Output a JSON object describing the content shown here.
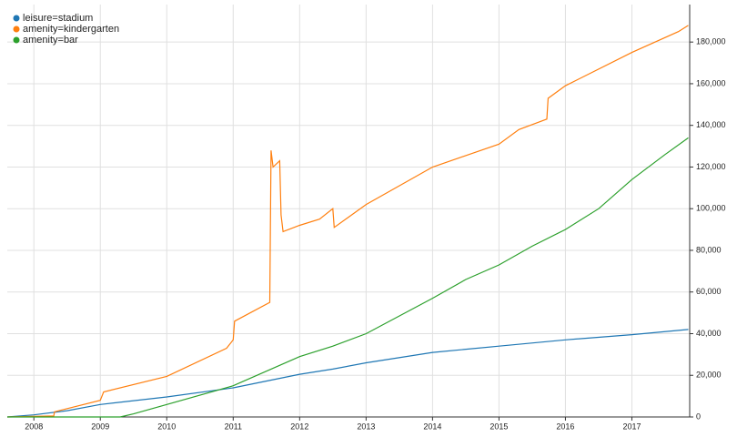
{
  "chart_data": {
    "type": "line",
    "series": [
      {
        "name": "leisure=stadium",
        "color": "#1f77b4",
        "x": [
          2007.6,
          2008,
          2008.5,
          2009,
          2010,
          2011,
          2012,
          2012.5,
          2013,
          2014,
          2015,
          2016,
          2017,
          2017.85
        ],
        "values": [
          0,
          1000,
          3000,
          6000,
          9600,
          14000,
          20500,
          23000,
          26000,
          31000,
          34000,
          37000,
          39500,
          42000
        ]
      },
      {
        "name": "amenity=kindergarten",
        "color": "#ff7f0e",
        "x": [
          2007.6,
          2008.3,
          2008.31,
          2009,
          2009.05,
          2010,
          2010.9,
          2011,
          2011.02,
          2011.55,
          2011.57,
          2011.6,
          2011.7,
          2011.72,
          2011.75,
          2012,
          2012.3,
          2012.5,
          2012.52,
          2013,
          2014,
          2015,
          2015.3,
          2015.72,
          2015.74,
          2016,
          2017,
          2017.7,
          2017.85
        ],
        "values": [
          0,
          500,
          2500,
          8000,
          12000,
          19500,
          33000,
          37000,
          46000,
          55000,
          128000,
          120000,
          123000,
          97000,
          89000,
          92000,
          95000,
          100000,
          91000,
          102000,
          120000,
          131000,
          138000,
          143000,
          153000,
          159000,
          175000,
          185000,
          188000
        ]
      },
      {
        "name": "amenity=bar",
        "color": "#2ca02c",
        "x": [
          2007.6,
          2009.3,
          2009.5,
          2010,
          2011,
          2012,
          2012.5,
          2013,
          2014,
          2014.5,
          2015,
          2015.5,
          2016,
          2016.5,
          2017,
          2017.5,
          2017.85
        ],
        "values": [
          0,
          0,
          1500,
          6000,
          15000,
          29000,
          34000,
          40000,
          57000,
          66000,
          73000,
          82000,
          90000,
          100000,
          114000,
          126000,
          134000
        ]
      }
    ],
    "xlim": [
      2007.6,
      2017.87
    ],
    "xticks": [
      2008,
      2009,
      2010,
      2011,
      2012,
      2013,
      2014,
      2015,
      2016,
      2017
    ],
    "ylim": [
      0,
      198000
    ],
    "yticks": [
      0,
      {
        "value": 20000,
        "label": "20,000"
      },
      {
        "value": 40000,
        "label": "40,000"
      },
      {
        "value": 60000,
        "label": "60,000"
      },
      {
        "value": 80000,
        "label": "80,000"
      },
      {
        "value": 100000,
        "label": "100,000"
      },
      {
        "value": 120000,
        "label": "120,000"
      },
      {
        "value": 140000,
        "label": "140,000"
      },
      {
        "value": 160000,
        "label": "160,000"
      },
      {
        "value": 180000,
        "label": "180,000"
      }
    ],
    "grid": true,
    "legend": "top-left"
  }
}
